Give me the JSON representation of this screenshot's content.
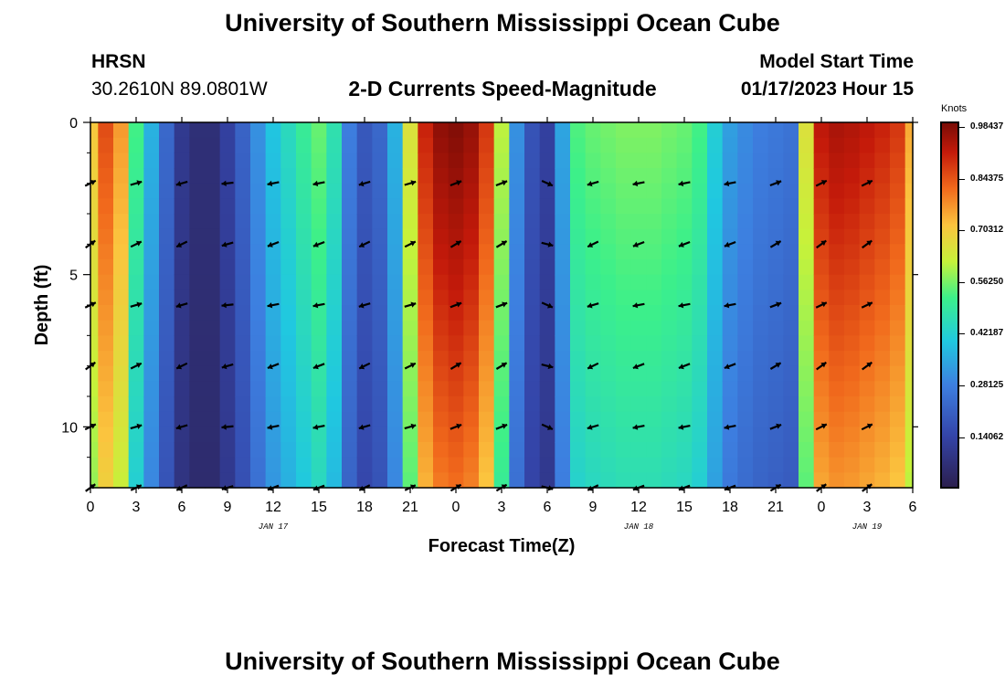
{
  "header": {
    "title": "University of Southern Mississippi Ocean Cube",
    "station": "HRSN",
    "coords": "30.2610N  89.0801W",
    "subtitle": "2-D Currents Speed-Magnitude",
    "model_start_label": "Model Start Time",
    "model_start_value": "01/17/2023 Hour 15"
  },
  "footer": {
    "title": "University of Southern Mississippi Ocean Cube"
  },
  "chart_data": {
    "type": "heatmap",
    "title": "2-D Currents Speed-Magnitude",
    "xlabel": "Forecast Time(Z)",
    "ylabel": "Depth (ft)",
    "x_range": [
      0,
      54
    ],
    "y_range": [
      0,
      12
    ],
    "x_tick_labels": [
      "0",
      "3",
      "6",
      "9",
      "12",
      "15",
      "18",
      "21",
      "0",
      "3",
      "6",
      "9",
      "12",
      "15",
      "18",
      "21",
      "0",
      "3",
      "6"
    ],
    "y_tick_labels": [
      "0",
      "5",
      "10"
    ],
    "date_labels": [
      {
        "label": "JAN 17",
        "x": 12
      },
      {
        "label": "JAN 18",
        "x": 36
      },
      {
        "label": "JAN 19",
        "x": 51
      }
    ],
    "colorbar": {
      "units": "Knots",
      "tick_labels": [
        "0.98437",
        "0.84375",
        "0.70312",
        "0.56250",
        "0.42187",
        "0.28125",
        "0.14062"
      ],
      "tick_values": [
        0.98437,
        0.84375,
        0.70312,
        0.5625,
        0.42187,
        0.28125,
        0.14062
      ],
      "range": [
        0,
        1.0
      ],
      "colors": [
        "#2b1f4f",
        "#3444a8",
        "#3d7fe0",
        "#20c8e0",
        "#3cf08a",
        "#c6f23a",
        "#fbc43e",
        "#f16a1c",
        "#c41a0a",
        "#7a0c06"
      ]
    },
    "speed_profile": {
      "description": "surface speed (knots) per hour 0..54; speed decreases slightly with depth",
      "hours": [
        0,
        1,
        2,
        3,
        4,
        5,
        6,
        7,
        8,
        9,
        10,
        11,
        12,
        13,
        14,
        15,
        16,
        17,
        18,
        19,
        20,
        21,
        22,
        23,
        24,
        25,
        26,
        27,
        28,
        29,
        30,
        31,
        32,
        33,
        34,
        35,
        36,
        37,
        38,
        39,
        40,
        41,
        42,
        43,
        44,
        45,
        46,
        47,
        48,
        49,
        50,
        51,
        52,
        53,
        54
      ],
      "surface_speed": [
        0.66,
        0.82,
        0.72,
        0.45,
        0.3,
        0.18,
        0.08,
        0.05,
        0.05,
        0.1,
        0.17,
        0.25,
        0.33,
        0.38,
        0.43,
        0.48,
        0.4,
        0.22,
        0.15,
        0.18,
        0.3,
        0.6,
        0.88,
        0.97,
        0.99,
        0.96,
        0.85,
        0.55,
        0.25,
        0.14,
        0.1,
        0.28,
        0.46,
        0.48,
        0.49,
        0.5,
        0.5,
        0.5,
        0.49,
        0.48,
        0.45,
        0.35,
        0.27,
        0.24,
        0.22,
        0.21,
        0.2,
        0.6,
        0.9,
        0.93,
        0.92,
        0.9,
        0.88,
        0.85,
        0.7
      ],
      "depth_factor_at_bottom": 0.78
    },
    "vectors": {
      "hours": [
        0,
        3,
        6,
        9,
        12,
        15,
        18,
        21,
        24,
        27,
        30,
        33,
        36,
        39,
        42,
        45,
        48,
        51
      ],
      "depths_ft": [
        2,
        4,
        6,
        8,
        10,
        12
      ],
      "surface_directions_deg": [
        30,
        20,
        200,
        190,
        195,
        195,
        200,
        20,
        25,
        25,
        340,
        200,
        195,
        195,
        195,
        25,
        30,
        30
      ]
    }
  }
}
